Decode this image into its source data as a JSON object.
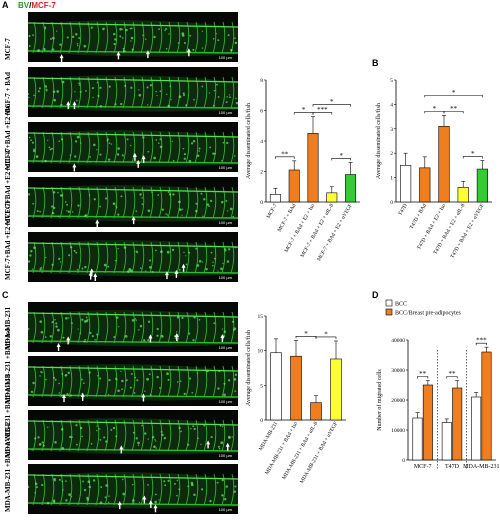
{
  "title": {
    "bv": "BV",
    "sep": "/",
    "mcf": "MCF-7"
  },
  "panels": {
    "A": "A",
    "B": "B",
    "C": "C",
    "D": "D"
  },
  "scale_bar": "100 µm",
  "fishA": [
    {
      "label": "MCF-7"
    },
    {
      "label": "MCF-7 + BAd"
    },
    {
      "label": "MCF-7+BAd +E2+Iso"
    },
    {
      "label": "MCF-7+BAd +E2+αIL-8"
    },
    {
      "label": "MCF-7+BAd +E2+αVEGF"
    }
  ],
  "fishC": [
    {
      "label": "MDA-MB-231"
    },
    {
      "label": "MDA-MB-231 +BAd+Iso"
    },
    {
      "label": "MDA-MB-231 +BAd+αIL-8"
    },
    {
      "label": "MDA-MB-231 +BAd+αVEGF"
    }
  ],
  "chart_data": [
    {
      "type": "bar",
      "panel": "A",
      "ylabel": "Average disseminated cells/fish",
      "ylim": [
        0,
        8
      ],
      "yticks": [
        0,
        2,
        4,
        6,
        8
      ],
      "categories": [
        "MCF-7",
        "MCF-7 + BAd",
        "MCF-7 + BAd + E2 + Iso",
        "MCF-7 + BAd + E2 + αIL-8",
        "MCF-7 + BAd + E2 + αVEGF"
      ],
      "values": [
        0.5,
        2.1,
        4.5,
        0.6,
        1.8
      ],
      "errors": [
        0.4,
        0.6,
        1.1,
        0.4,
        0.8
      ],
      "colors": [
        "#ffffff",
        "#f07d1e",
        "#f07d1e",
        "#ffff33",
        "#33cc33"
      ],
      "significance": [
        {
          "from": 0,
          "to": 1,
          "label": "**"
        },
        {
          "from": 1,
          "to": 2,
          "label": "*"
        },
        {
          "from": 2,
          "to": 3,
          "label": "***"
        },
        {
          "from": 2,
          "to": 4,
          "label": "*"
        },
        {
          "from": 3,
          "to": 4,
          "label": "*"
        }
      ]
    },
    {
      "type": "bar",
      "panel": "B",
      "ylabel": "Average disseminated cells/fish",
      "ylim": [
        0,
        5
      ],
      "yticks": [
        0,
        1,
        2,
        3,
        4,
        5
      ],
      "categories": [
        "T47D",
        "T47D + BAd",
        "T47D + BAd + E2 + Iso",
        "T47D + BAd + E2 + αIL-8",
        "T47D + BAd + E2 + αVEGF"
      ],
      "values": [
        1.5,
        1.4,
        3.1,
        0.6,
        1.35
      ],
      "errors": [
        0.5,
        0.45,
        0.45,
        0.25,
        0.35
      ],
      "colors": [
        "#ffffff",
        "#f07d1e",
        "#f07d1e",
        "#ffff33",
        "#33cc33"
      ],
      "significance": [
        {
          "from": 1,
          "to": 2,
          "label": "*"
        },
        {
          "from": 2,
          "to": 3,
          "label": "**"
        },
        {
          "from": 1,
          "to": 4,
          "label": "*"
        },
        {
          "from": 3,
          "to": 4,
          "label": "*"
        }
      ]
    },
    {
      "type": "bar",
      "panel": "C",
      "ylabel": "Average disseminated cells/fish",
      "ylim": [
        0,
        15
      ],
      "yticks": [
        0,
        5,
        10,
        15
      ],
      "categories": [
        "MDA-MB-231",
        "MDA-MB-231 + BAd + Iso",
        "MDA-MB-231 + BAd + αIL-8",
        "MDA-MB-231 + BAd + αVEGF"
      ],
      "values": [
        9.7,
        9.2,
        2.5,
        8.8
      ],
      "errors": [
        2.0,
        2.3,
        1.0,
        2.6
      ],
      "colors": [
        "#ffffff",
        "#f07d1e",
        "#f07d1e",
        "#ffff33"
      ],
      "significance": [
        {
          "from": 1,
          "to": 2,
          "label": "*"
        },
        {
          "from": 2,
          "to": 3,
          "label": "*"
        }
      ]
    },
    {
      "type": "bar",
      "panel": "D",
      "ylabel": "Number of migrated cells",
      "ylim": [
        0,
        40000
      ],
      "yticks": [
        0,
        10000,
        20000,
        30000,
        40000
      ],
      "categories": [
        "MCF-7",
        "T47D",
        "MDA-MB-231"
      ],
      "series": [
        {
          "name": "BCC",
          "values": [
            14000,
            12500,
            21000
          ],
          "errors": [
            1800,
            1200,
            1500
          ],
          "color": "#ffffff"
        },
        {
          "name": "BCC/Breast pre-adipocytes",
          "values": [
            25000,
            24000,
            36000
          ],
          "errors": [
            1500,
            2500,
            1600
          ],
          "color": "#f07d1e"
        }
      ],
      "significance": [
        "**",
        "**",
        "***"
      ]
    }
  ]
}
